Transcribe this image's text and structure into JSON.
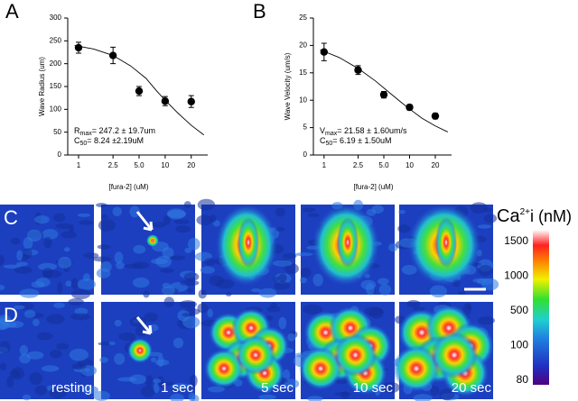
{
  "chart_data": [
    {
      "type": "scatter",
      "label": "A",
      "ylabel": "Wave Radius (um)",
      "xlabel": "[fura-2] (uM)",
      "x": [
        1,
        2.5,
        5,
        10,
        20
      ],
      "values": [
        235,
        218,
        140,
        118,
        117
      ],
      "errors": [
        12,
        18,
        10,
        10,
        13
      ],
      "color": "#000000",
      "fit": {
        "x": [
          0.9,
          1.5,
          2.5,
          4,
          6,
          8,
          10,
          14,
          20,
          28
        ],
        "values": [
          240,
          232,
          218,
          195,
          168,
          140,
          120,
          92,
          65,
          44
        ]
      },
      "xlog": true,
      "xlim": [
        0.75,
        31
      ],
      "xticks": [
        1,
        2.5,
        {
          "value": 5,
          "label": "5.0"
        },
        10,
        20
      ],
      "ylim": [
        0,
        300
      ],
      "yticks": [
        0,
        50,
        100,
        150,
        200,
        250,
        300
      ],
      "annotations": [
        {
          "main": "R",
          "sub": "max",
          "rest": "= 247.2 ± 19.7um"
        },
        {
          "main": "C",
          "sub": "50",
          "rest": "= 8.24 ±2.19uM"
        }
      ]
    },
    {
      "type": "scatter",
      "label": "B",
      "ylabel": "Wave Velocity (um/s)",
      "xlabel": "[fura-2] (uM)",
      "x": [
        1,
        2.5,
        5,
        10,
        20
      ],
      "values": [
        18.8,
        15.5,
        11,
        8.7,
        7.1
      ],
      "errors": [
        1.6,
        0.8,
        0.6,
        0.5,
        0.5
      ],
      "color": "#000000",
      "fit": {
        "x": [
          0.9,
          1.5,
          2.5,
          4,
          6,
          8,
          10,
          14,
          20,
          28
        ],
        "values": [
          19.2,
          17.8,
          15.8,
          13.5,
          11.2,
          9.6,
          8.4,
          6.7,
          5.3,
          4.2
        ]
      },
      "xlog": true,
      "xlim": [
        0.75,
        31
      ],
      "xticks": [
        1,
        2.5,
        {
          "value": 5,
          "label": "5.0"
        },
        10,
        20
      ],
      "ylim": [
        0,
        25
      ],
      "yticks": [
        0,
        5,
        10,
        15,
        20,
        25
      ],
      "annotations": [
        {
          "main": "V",
          "sub": "max",
          "rest": "= 21.58 ± 1.60um/s"
        },
        {
          "main": "C",
          "sub": "50",
          "rest": "= 6.19 ± 1.50uM"
        }
      ]
    }
  ],
  "images": {
    "rows": [
      "C",
      "D"
    ],
    "times": [
      "resting",
      "1 sec",
      "5 sec",
      "10 sec",
      "20 sec"
    ]
  },
  "colorbar": {
    "title": {
      "main": "Ca",
      "sup": "2+",
      "rest": "i (nM)"
    },
    "labels": [
      "1500",
      "1000",
      "500",
      "100",
      "80"
    ]
  }
}
